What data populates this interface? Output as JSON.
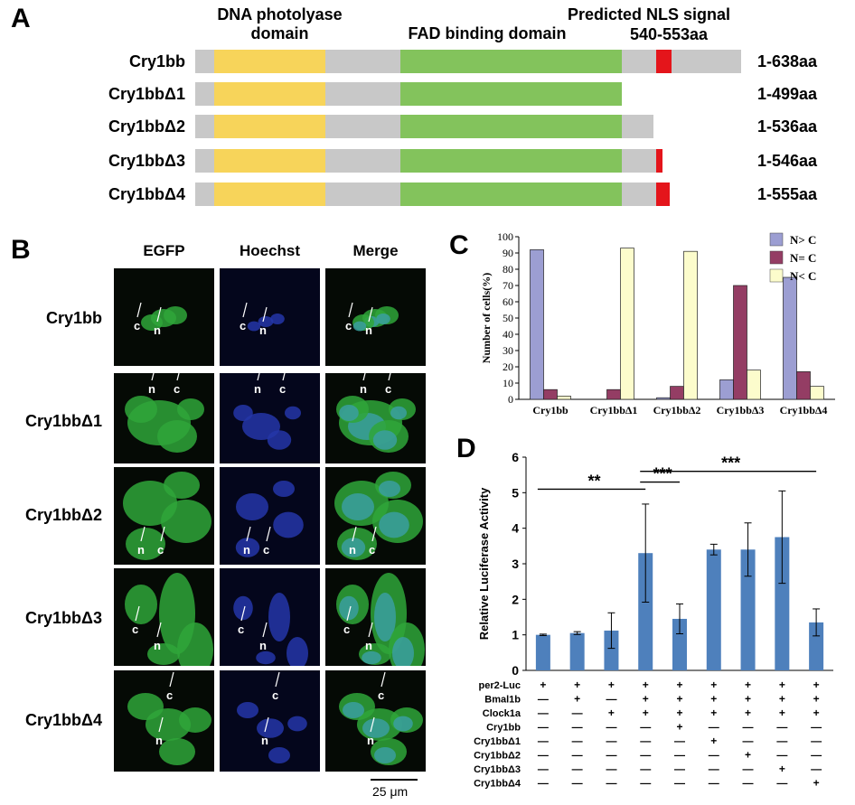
{
  "panelA": {
    "letter": "A",
    "headers": {
      "photolyase": "DNA photolyase domain",
      "fad": "FAD binding domain",
      "nls_title": "Predicted NLS signal",
      "nls_range": "540-553aa"
    },
    "constructs": [
      {
        "name": "Cry1bb",
        "length": "1-638aa",
        "end_aa": 638
      },
      {
        "name": "Cry1bbΔ1",
        "length": "1-499aa",
        "end_aa": 499
      },
      {
        "name": "Cry1bbΔ2",
        "length": "1-536aa",
        "end_aa": 536
      },
      {
        "name": "Cry1bbΔ3",
        "length": "1-546aa",
        "end_aa": 546
      },
      {
        "name": "Cry1bbΔ4",
        "length": "1-555aa",
        "end_aa": 555
      }
    ],
    "colors": {
      "backbone": "#c8c8c8",
      "photolyase": "#f7d45a",
      "fad": "#83c35c",
      "nls": "#e4151b"
    }
  },
  "panelB": {
    "letter": "B",
    "columns": [
      "EGFP",
      "Hoechst",
      "Merge"
    ],
    "rows": [
      "Cry1bb",
      "Cry1bbΔ1",
      "Cry1bbΔ2",
      "Cry1bbΔ3",
      "Cry1bbΔ4"
    ],
    "scale_bar": "25 μm"
  },
  "panelC": {
    "letter": "C",
    "chart_data": {
      "type": "bar",
      "title": "",
      "ylabel": "Number of cells(%)",
      "xlabel": "",
      "ylim": [
        0,
        100
      ],
      "yticks": [
        "0",
        "10",
        "20",
        "30",
        "40",
        "50",
        "60",
        "70",
        "80",
        "90",
        "100"
      ],
      "categories": [
        "Cry1bb",
        "Cry1bbΔ1",
        "Cry1bbΔ2",
        "Cry1bbΔ3",
        "Cry1bbΔ4"
      ],
      "series": [
        {
          "name": "N> C",
          "color": "#9c9ed2",
          "values": [
            92,
            0,
            1,
            12,
            75
          ]
        },
        {
          "name": "N= C",
          "color": "#943d64",
          "values": [
            6,
            6,
            8,
            70,
            17
          ]
        },
        {
          "name": "N< C",
          "color": "#fcfccc",
          "values": [
            2,
            93,
            91,
            18,
            8
          ]
        }
      ],
      "legend": "top-right"
    }
  },
  "panelD": {
    "letter": "D",
    "chart_data": {
      "type": "bar",
      "title": "",
      "ylabel": "Relative Luciferase Activity",
      "ylim": [
        0,
        6
      ],
      "yticks": [
        "0",
        "1",
        "2",
        "3",
        "4",
        "5",
        "6"
      ],
      "values": [
        1.0,
        1.05,
        1.12,
        3.3,
        1.45,
        3.4,
        3.4,
        3.75,
        1.35
      ],
      "errors": [
        0.02,
        0.04,
        0.5,
        1.38,
        0.42,
        0.15,
        0.75,
        1.3,
        0.38
      ],
      "color": "#4e80bc",
      "significance": [
        {
          "label": "**",
          "from": 0,
          "to": 3,
          "y": 5.1
        },
        {
          "label": "***",
          "from": 3,
          "to": 4,
          "y": 5.3
        },
        {
          "label": "***",
          "from": 3,
          "to": 8,
          "y": 5.6
        }
      ],
      "conditions": [
        {
          "name": "per2-Luc",
          "signs": [
            "+",
            "+",
            "+",
            "+",
            "+",
            "+",
            "+",
            "+",
            "+"
          ]
        },
        {
          "name": "Bmal1b",
          "signs": [
            "—",
            "+",
            "—",
            "+",
            "+",
            "+",
            "+",
            "+",
            "+"
          ]
        },
        {
          "name": "Clock1a",
          "signs": [
            "—",
            "—",
            "+",
            "+",
            "+",
            "+",
            "+",
            "+",
            "+"
          ]
        },
        {
          "name": "Cry1bb",
          "signs": [
            "—",
            "—",
            "—",
            "—",
            "+",
            "—",
            "—",
            "—",
            "—"
          ]
        },
        {
          "name": "Cry1bbΔ1",
          "signs": [
            "—",
            "—",
            "—",
            "—",
            "—",
            "+",
            "—",
            "—",
            "—"
          ]
        },
        {
          "name": "Cry1bbΔ2",
          "signs": [
            "—",
            "—",
            "—",
            "—",
            "—",
            "—",
            "+",
            "—",
            "—"
          ]
        },
        {
          "name": "Cry1bbΔ3",
          "signs": [
            "—",
            "—",
            "—",
            "—",
            "—",
            "—",
            "—",
            "+",
            "—"
          ]
        },
        {
          "name": "Cry1bbΔ4",
          "signs": [
            "—",
            "—",
            "—",
            "—",
            "—",
            "—",
            "—",
            "—",
            "+"
          ]
        }
      ]
    }
  }
}
